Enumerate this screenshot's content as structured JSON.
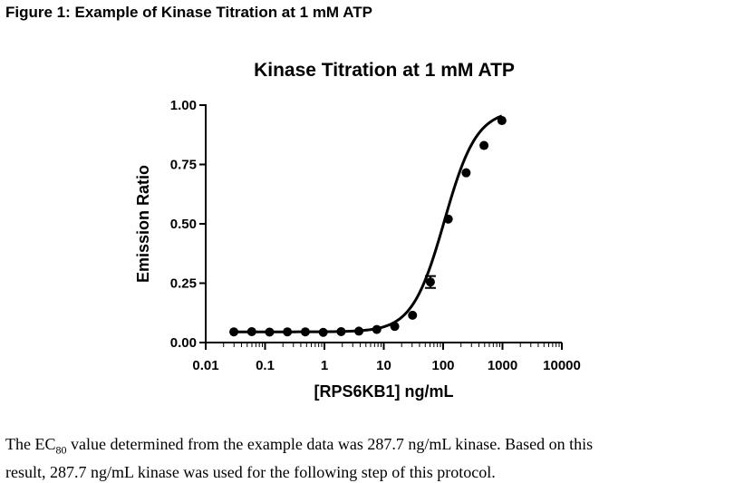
{
  "figure_heading": "Figure 1: Example of Kinase Titration at 1 mM ATP",
  "caption": {
    "line1_prefix": "The EC",
    "line1_sub": "80",
    "line1_rest": " value determined from the example data was 287.7 ng/mL kinase.  Based on this",
    "line2": "result, 287.7 ng/mL kinase was used for the following step of this protocol."
  },
  "chart_data": {
    "type": "scatter",
    "title": "Kinase Titration at 1 mM ATP",
    "xlabel": "[RPS6KB1] ng/mL",
    "ylabel": "Emission Ratio",
    "x_scale": "log",
    "xlim": [
      0.01,
      10000
    ],
    "ylim": [
      0.0,
      1.0
    ],
    "x_ticks": [
      0.01,
      0.1,
      1,
      10,
      100,
      1000,
      10000
    ],
    "x_tick_labels": [
      "0.01",
      "0.1",
      "1",
      "10",
      "100",
      "1000",
      "10000"
    ],
    "y_ticks": [
      0.0,
      0.25,
      0.5,
      0.75,
      1.0
    ],
    "y_tick_labels": [
      "0.00",
      "0.25",
      "0.50",
      "0.75",
      "1.00"
    ],
    "grid": false,
    "series": [
      {
        "x": [
          0.0298,
          0.0596,
          0.119,
          0.238,
          0.477,
          0.954,
          1.91,
          3.81,
          7.63,
          15.3,
          30.5,
          61.0,
          122,
          244,
          488,
          977
        ],
        "y": [
          0.045,
          0.046,
          0.044,
          0.045,
          0.045,
          0.043,
          0.046,
          0.048,
          0.055,
          0.068,
          0.115,
          0.255,
          0.52,
          0.715,
          0.83,
          0.935
        ],
        "error": [
          0,
          0,
          0,
          0,
          0,
          0,
          0,
          0,
          0,
          0,
          0,
          0.025,
          0,
          0,
          0,
          0
        ]
      }
    ],
    "fit_curve": {
      "model": "4-parameter logistic",
      "bottom": 0.045,
      "top": 0.98,
      "ec50": 105,
      "hill": 1.6,
      "x_range": [
        0.0298,
        977
      ]
    }
  }
}
